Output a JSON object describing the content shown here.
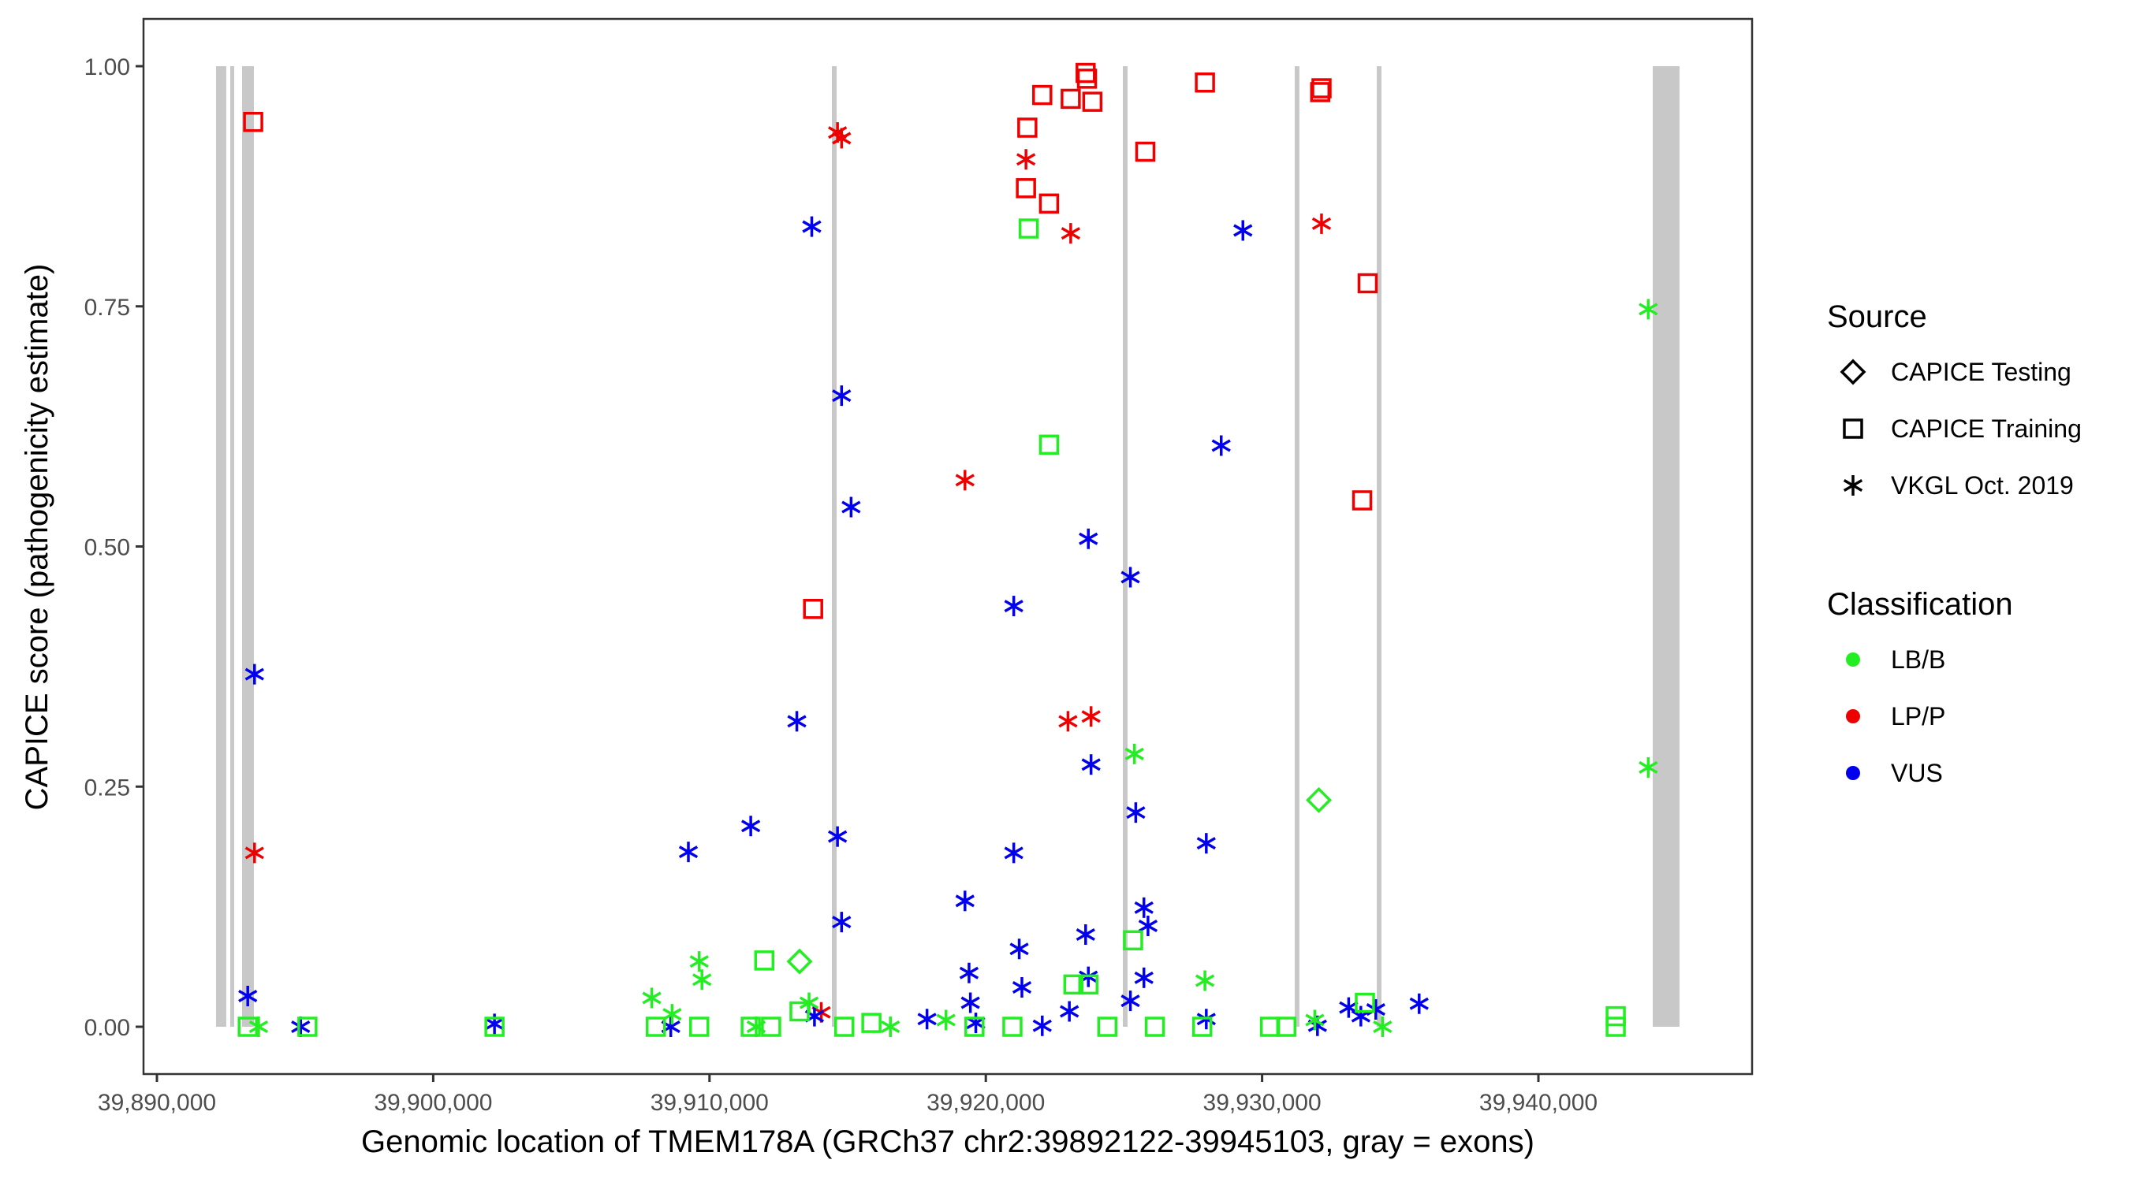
{
  "chart_data": {
    "type": "scatter",
    "xlabel": "Genomic location of TMEM178A (GRCh37 chr2:39892122-39945103, gray = exons)",
    "ylabel": "CAPICE score (pathogenicity estimate)",
    "xlim": [
      39888500,
      39948000
    ],
    "ylim": [
      -0.05,
      1.05
    ],
    "x_ticks": [
      39890000,
      39900000,
      39910000,
      39920000,
      39930000,
      39940000
    ],
    "x_tick_labels": [
      "39,890,000",
      "39,900,000",
      "39,910,000",
      "39,920,000",
      "39,930,000",
      "39,940,000"
    ],
    "y_ticks": [
      0,
      0.25,
      0.5,
      0.75,
      1.0
    ],
    "y_tick_labels": [
      "0.00",
      "0.25",
      "0.50",
      "0.75",
      "1.00"
    ],
    "grid": false,
    "legend_position": "right",
    "exon_color": "#c8c8c8",
    "exons": [
      [
        39892140,
        39892510
      ],
      [
        39892654,
        39892797
      ],
      [
        39893082,
        39893510
      ],
      [
        39914430,
        39914600
      ],
      [
        39924960,
        39925130
      ],
      [
        39931180,
        39931350
      ],
      [
        39934150,
        39934320
      ],
      [
        39944138,
        39945108
      ]
    ],
    "legends": {
      "source": {
        "title": "Source",
        "items": [
          {
            "label": "CAPICE Testing",
            "shape": "diamond"
          },
          {
            "label": "CAPICE Training",
            "shape": "square"
          },
          {
            "label": "VKGL Oct. 2019",
            "shape": "asterisk"
          }
        ]
      },
      "classification": {
        "title": "Classification",
        "items": [
          {
            "label": "LB/B",
            "color": "#22ee22"
          },
          {
            "label": "LP/P",
            "color": "#ee0000"
          },
          {
            "label": "VUS",
            "color": "#0000ee"
          }
        ]
      }
    },
    "series": [
      {
        "name": "CAPICE Training / LP/P",
        "shape": "square",
        "color": "#ee0000",
        "x": [
          39893484,
          39913750,
          39921503,
          39921454,
          39922043,
          39922288,
          39923073,
          39923613,
          39923662,
          39923858,
          39925772,
          39927931,
          39932102,
          39932151,
          39933820,
          39933623
        ],
        "y": [
          0.942,
          0.435,
          0.936,
          0.873,
          0.97,
          0.857,
          0.966,
          0.993,
          0.987,
          0.963,
          0.911,
          0.983,
          0.973,
          0.977,
          0.774,
          0.548
        ]
      },
      {
        "name": "VKGL Oct. 2019 / LP/P",
        "shape": "asterisk",
        "color": "#ee0000",
        "x": [
          39893533,
          39914633,
          39914780,
          39921454,
          39923073,
          39919246,
          39922975,
          39923809,
          39932151,
          39914044
        ],
        "y": [
          0.181,
          0.931,
          0.925,
          0.903,
          0.826,
          0.569,
          0.318,
          0.323,
          0.836,
          0.015
        ]
      },
      {
        "name": "VKGL Oct. 2019 / VUS",
        "shape": "asterisk",
        "color": "#0000ee",
        "x": [
          39893288,
          39893533,
          39895201,
          39902218,
          39909235,
          39908598,
          39911493,
          39913161,
          39913701,
          39914633,
          39914780,
          39914780,
          39915124,
          39919246,
          39919393,
          39919442,
          39921012,
          39921012,
          39921209,
          39921307,
          39923711,
          39923809,
          39923613,
          39923711,
          39925232,
          39925428,
          39925723,
          39925870,
          39925723,
          39929305,
          39928520,
          39927980,
          39927980,
          39917872,
          39935684,
          39933133,
          39934115,
          39923024,
          39925232,
          39913799,
          39922043,
          39919638,
          39932004,
          39933574
        ],
        "y": [
          0.032,
          0.367,
          0.0,
          0.003,
          0.182,
          0.0,
          0.209,
          0.318,
          0.833,
          0.198,
          0.109,
          0.657,
          0.541,
          0.131,
          0.056,
          0.025,
          0.438,
          0.181,
          0.081,
          0.041,
          0.508,
          0.273,
          0.096,
          0.052,
          0.468,
          0.223,
          0.124,
          0.105,
          0.051,
          0.829,
          0.605,
          0.191,
          0.008,
          0.008,
          0.024,
          0.02,
          0.018,
          0.016,
          0.027,
          0.011,
          0.001,
          0.004,
          0.001,
          0.011
        ]
      },
      {
        "name": "VKGL Oct. 2019 / LB/B",
        "shape": "asterisk",
        "color": "#22ee22",
        "x": [
          39943977,
          39943977,
          39925380,
          39927931,
          39909628,
          39909726,
          39907911,
          39908647,
          39913603,
          39916547,
          39918559,
          39931906,
          39934359,
          39893680,
          39911689
        ],
        "y": [
          0.747,
          0.27,
          0.284,
          0.048,
          0.068,
          0.049,
          0.03,
          0.013,
          0.025,
          0.0,
          0.007,
          0.007,
          0.0,
          0.0,
          0.0
        ]
      },
      {
        "name": "CAPICE Training / LB/B",
        "shape": "square",
        "color": "#22ee22",
        "x": [
          39921553,
          39922288,
          39911983,
          39925330,
          39923171,
          39923711,
          39933721,
          39913259,
          39942799,
          39942799,
          39893288,
          39895447,
          39902218,
          39908058,
          39909628,
          39911493,
          39912229,
          39914878,
          39915860,
          39920963,
          39924398,
          39927833,
          39930286,
          39930875,
          39919589,
          39926116
        ],
        "y": [
          0.831,
          0.606,
          0.069,
          0.09,
          0.044,
          0.044,
          0.025,
          0.016,
          0.011,
          0.0,
          0.0,
          0.0,
          0.0,
          0.0,
          0.0,
          0.0,
          0.0,
          0.0,
          0.004,
          0.0,
          0.0,
          0.0,
          0.0,
          0.0,
          0.0,
          0.0
        ]
      },
      {
        "name": "CAPICE Testing / LB/B",
        "shape": "diamond",
        "color": "#22ee22",
        "x": [
          39913259,
          39932053
        ],
        "y": [
          0.068,
          0.236
        ]
      }
    ]
  }
}
